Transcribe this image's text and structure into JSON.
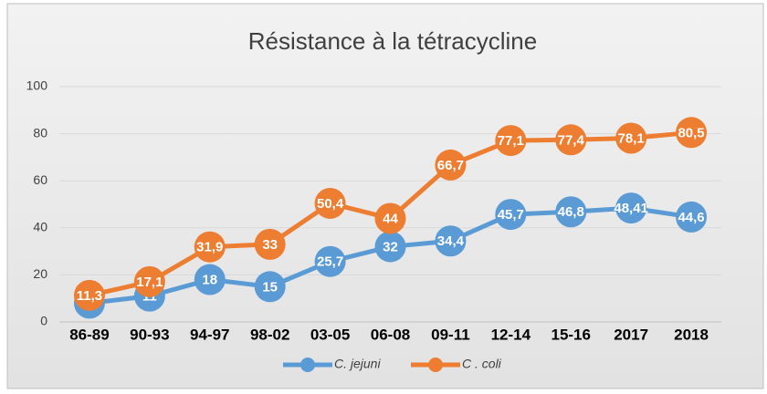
{
  "chart_data": {
    "type": "line",
    "title": "Résistance à la tétracycline",
    "categories": [
      "86-89",
      "90-93",
      "94-97",
      "98-02",
      "03-05",
      "06-08",
      "09-11",
      "12-14",
      "15-16",
      "2017",
      "2018"
    ],
    "series": [
      {
        "name": "C. jejuni",
        "color": "#5b9bd5",
        "values": [
          8,
          11,
          18,
          15,
          25.7,
          32,
          34.4,
          45.7,
          46.8,
          48.41,
          44.6
        ],
        "value_labels": [
          "8",
          "11",
          "18",
          "15",
          "25,7",
          "32",
          "34,4",
          "45,7",
          "46,8",
          "48,41",
          "44,6"
        ]
      },
      {
        "name": "C . coli",
        "color": "#ed7d31",
        "values": [
          11.3,
          17.1,
          31.9,
          33,
          50.4,
          44,
          66.7,
          77.1,
          77.4,
          78.1,
          80.5
        ],
        "value_labels": [
          "11,3",
          "17,1",
          "31,9",
          "33",
          "50,4",
          "44",
          "66,7",
          "77,1",
          "77,4",
          "78,1",
          "80,5"
        ]
      }
    ],
    "ylim": [
      0,
      100
    ],
    "yticks": [
      0,
      20,
      40,
      60,
      80,
      100
    ],
    "grid": true,
    "legend": "bottom"
  }
}
